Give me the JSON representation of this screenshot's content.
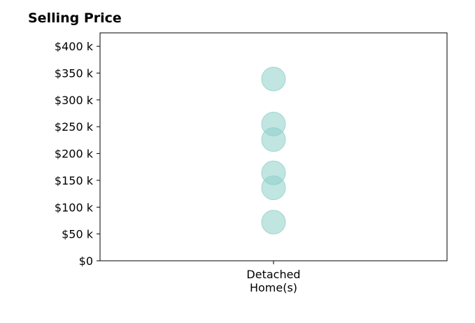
{
  "chart_data": {
    "type": "scatter",
    "title": "Selling Price",
    "categories": [
      "Detached Home(s)"
    ],
    "category_label_lines": [
      "Detached",
      "Home(s)"
    ],
    "series": [
      {
        "category": "Detached Home(s)",
        "values": [
          339000,
          255000,
          226000,
          164000,
          136000,
          72000
        ]
      }
    ],
    "y_ticks": [
      0,
      50000,
      100000,
      150000,
      200000,
      250000,
      300000,
      350000,
      400000
    ],
    "y_tick_labels": [
      "$0",
      "$50 k",
      "$100 k",
      "$150 k",
      "$200 k",
      "$250 k",
      "$300 k",
      "$350 k",
      "$400 k"
    ],
    "ylim": [
      0,
      425000
    ],
    "grid": false,
    "marker_color": "#8ecfc9"
  }
}
